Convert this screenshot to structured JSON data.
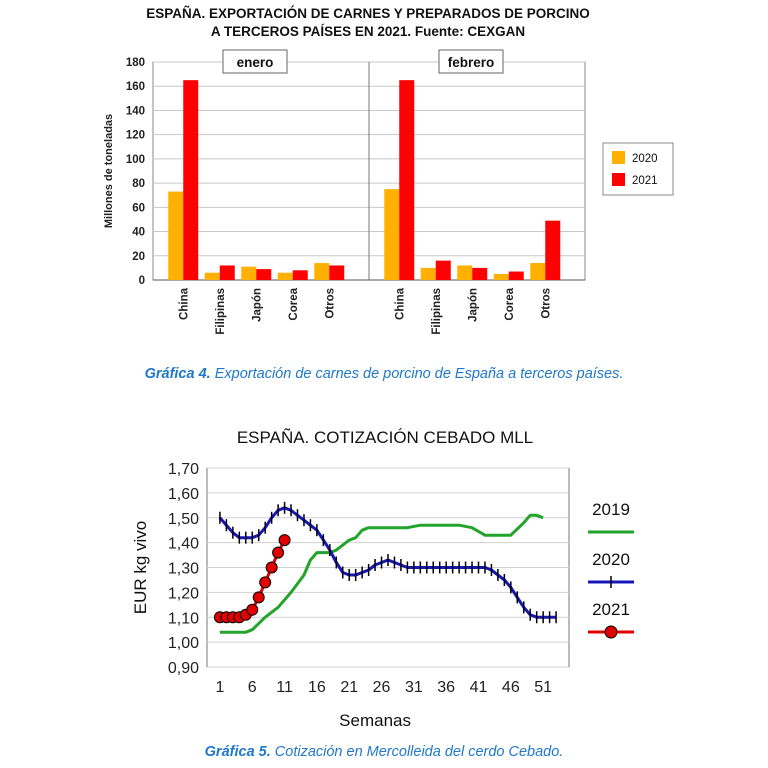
{
  "chart_data": [
    {
      "type": "bar",
      "title": "ESPAÑA. EXPORTACIÓN DE CARNES Y PREPARADOS DE PORCINO",
      "subtitle": "A TERCEROS PAÍSES EN 2021. Fuente: CEXGAN",
      "ylabel": "Millones de toneladas",
      "ylim": [
        0,
        180
      ],
      "yticks": [
        "0",
        "20",
        "40",
        "60",
        "80",
        "100",
        "120",
        "140",
        "160",
        "180"
      ],
      "legend_position": "right",
      "grid": true,
      "panels": [
        {
          "label": "enero",
          "categories": [
            "China",
            "Filipinas",
            "Japón",
            "Corea",
            "Otros"
          ],
          "series": [
            {
              "name": "2020",
              "color": "#ffb000",
              "values": [
                73,
                6,
                11,
                6,
                14
              ]
            },
            {
              "name": "2021",
              "color": "#ff0000",
              "values": [
                165,
                12,
                9,
                8,
                12
              ]
            }
          ]
        },
        {
          "label": "febrero",
          "categories": [
            "China",
            "Filipinas",
            "Japón",
            "Corea",
            "Otros"
          ],
          "series": [
            {
              "name": "2020",
              "color": "#ffb000",
              "values": [
                75,
                10,
                12,
                5,
                14
              ]
            },
            {
              "name": "2021",
              "color": "#ff0000",
              "values": [
                165,
                16,
                10,
                7,
                49
              ]
            }
          ]
        }
      ]
    },
    {
      "type": "line",
      "title": "ESPAÑA. COTIZACIÓN CEBADO MLL",
      "xlabel": "Semanas",
      "ylabel": "EUR kg vivo",
      "xlim": [
        -1,
        55
      ],
      "ylim": [
        0.9,
        1.7
      ],
      "xticks": [
        1,
        6,
        11,
        16,
        21,
        26,
        31,
        36,
        41,
        46,
        51
      ],
      "yticks": [
        "0,90",
        "1,00",
        "1,10",
        "1,20",
        "1,30",
        "1,40",
        "1,50",
        "1,60",
        "1,70"
      ],
      "legend_position": "right",
      "grid": true,
      "series": [
        {
          "name": "2019",
          "color": "#22a32a",
          "marker": "none",
          "x": [
            1,
            5,
            6,
            8,
            10,
            12,
            14,
            15,
            16,
            17,
            18,
            19,
            20,
            21,
            22,
            23,
            24,
            25,
            26,
            28,
            30,
            32,
            34,
            36,
            38,
            40,
            42,
            44,
            46,
            48,
            49,
            50,
            51
          ],
          "y": [
            1.04,
            1.04,
            1.05,
            1.1,
            1.14,
            1.2,
            1.27,
            1.33,
            1.36,
            1.36,
            1.36,
            1.37,
            1.39,
            1.41,
            1.42,
            1.45,
            1.46,
            1.46,
            1.46,
            1.46,
            1.46,
            1.47,
            1.47,
            1.47,
            1.47,
            1.46,
            1.43,
            1.43,
            1.43,
            1.48,
            1.51,
            1.51,
            1.5
          ]
        },
        {
          "name": "2020",
          "color": "#1515b8",
          "marker": "plus",
          "x": [
            1,
            2,
            3,
            4,
            5,
            6,
            7,
            8,
            9,
            10,
            11,
            12,
            13,
            14,
            15,
            16,
            17,
            18,
            19,
            20,
            21,
            22,
            23,
            24,
            25,
            26,
            27,
            28,
            29,
            30,
            31,
            32,
            33,
            34,
            35,
            36,
            37,
            38,
            39,
            40,
            41,
            42,
            43,
            44,
            45,
            46,
            47,
            48,
            49,
            50,
            51,
            52,
            53
          ],
          "y": [
            1.5,
            1.47,
            1.44,
            1.42,
            1.42,
            1.42,
            1.43,
            1.46,
            1.5,
            1.53,
            1.54,
            1.53,
            1.51,
            1.49,
            1.47,
            1.45,
            1.41,
            1.37,
            1.32,
            1.28,
            1.27,
            1.27,
            1.28,
            1.29,
            1.31,
            1.32,
            1.33,
            1.32,
            1.31,
            1.3,
            1.3,
            1.3,
            1.3,
            1.3,
            1.3,
            1.3,
            1.3,
            1.3,
            1.3,
            1.3,
            1.3,
            1.3,
            1.29,
            1.27,
            1.25,
            1.22,
            1.18,
            1.14,
            1.11,
            1.1,
            1.1,
            1.1,
            1.1
          ]
        },
        {
          "name": "2021",
          "color": "#e00000",
          "marker": "circle",
          "x": [
            1,
            2,
            3,
            4,
            5,
            6,
            7,
            8,
            9,
            10,
            11
          ],
          "y": [
            1.1,
            1.1,
            1.1,
            1.1,
            1.11,
            1.13,
            1.18,
            1.24,
            1.3,
            1.36,
            1.41
          ]
        }
      ]
    }
  ],
  "captions": [
    {
      "label": "Gráfica 4.",
      "text": "Exportación de carnes de porcino de España a terceros países."
    },
    {
      "label": "Gráfica 5.",
      "text": "Cotización en Mercolleida del cerdo Cebado."
    }
  ]
}
